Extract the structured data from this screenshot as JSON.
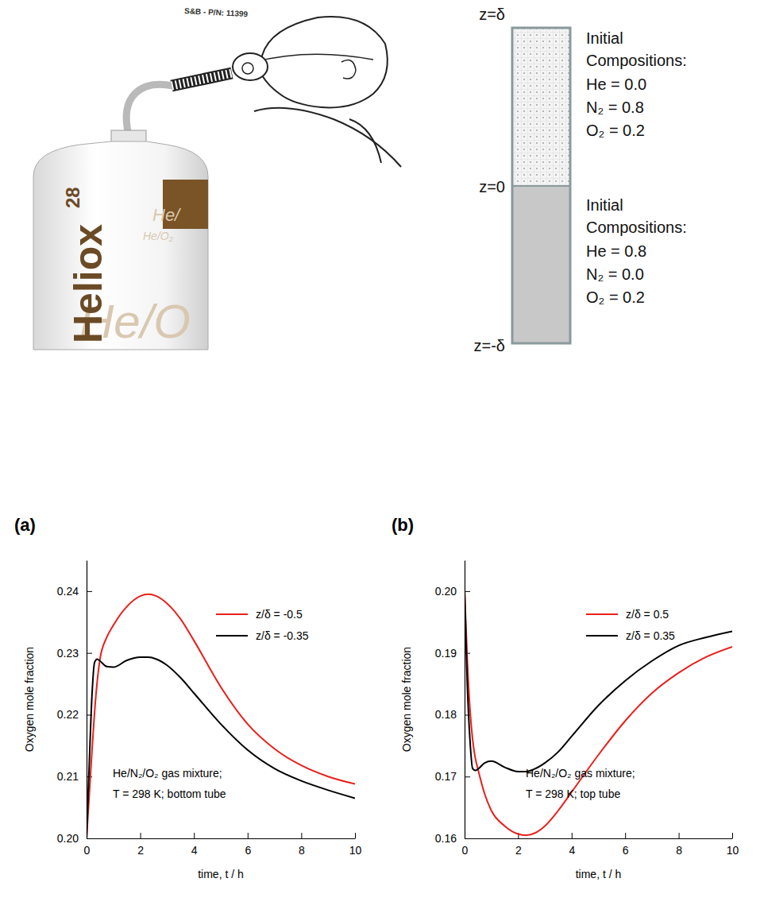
{
  "illustration": {
    "label": "S&B - P/N: 11399",
    "brand": "Heliox",
    "brand_number": "28",
    "faint_texts": [
      "He/",
      "He/O₂",
      "He/O"
    ]
  },
  "diagram": {
    "z_labels": [
      "z=δ",
      "z=0",
      "z=-δ"
    ],
    "regions": [
      {
        "heading": "Initial Compositions:",
        "lines": [
          "He = 0.0",
          "N₂ = 0.8",
          "O₂ = 0.2"
        ]
      },
      {
        "heading": "Initial Compositions:",
        "lines": [
          "He = 0.8",
          "N₂ = 0.0",
          "O₂ = 0.2"
        ]
      }
    ]
  },
  "chart_data": [
    {
      "type": "line",
      "panel": "(a)",
      "x_label": "time, t / h",
      "y_label": "Oxygen mole fraction",
      "x": [
        0,
        0.1,
        0.2,
        0.3,
        0.4,
        0.5,
        0.75,
        1,
        1.5,
        2,
        2.3,
        2.6,
        3,
        3.5,
        4,
        5,
        6,
        7,
        8,
        9,
        10
      ],
      "xlim": [
        0,
        10
      ],
      "xticks": [
        0,
        2,
        4,
        6,
        8,
        10
      ],
      "ylim": [
        0.2,
        0.245
      ],
      "yticks": [
        {
          "value": 0.2,
          "label": "0.20"
        },
        0.21,
        0.22,
        0.23,
        0.24
      ],
      "legend": "top-right",
      "annotations": [
        "He/N₂/O₂ gas mixture;",
        "T = 298 K; bottom tube"
      ],
      "series": [
        {
          "name": "z/δ = -0.5",
          "color": "#e8201c",
          "values": [
            0.2,
            0.207,
            0.214,
            0.2205,
            0.2255,
            0.229,
            0.2325,
            0.2345,
            0.2375,
            0.2392,
            0.2395,
            0.2392,
            0.238,
            0.2355,
            0.232,
            0.2245,
            0.2185,
            0.2145,
            0.2118,
            0.21,
            0.2088
          ]
        },
        {
          "name": "z/δ = -0.35",
          "color": "#000000",
          "values": [
            0.2,
            0.212,
            0.223,
            0.2285,
            0.229,
            0.2287,
            0.2278,
            0.2277,
            0.2288,
            0.2293,
            0.2293,
            0.229,
            0.228,
            0.226,
            0.2235,
            0.2185,
            0.2143,
            0.2113,
            0.2093,
            0.2078,
            0.2065
          ]
        }
      ]
    },
    {
      "type": "line",
      "panel": "(b)",
      "x_label": "time, t / h",
      "y_label": "Oxygen mole fraction",
      "x": [
        0,
        0.1,
        0.2,
        0.3,
        0.4,
        0.5,
        0.75,
        1,
        1.5,
        2,
        2.3,
        2.6,
        3,
        3.5,
        4,
        5,
        6,
        7,
        8,
        9,
        10
      ],
      "xlim": [
        0,
        10
      ],
      "xticks": [
        0,
        2,
        4,
        6,
        8,
        10
      ],
      "ylim": [
        0.16,
        0.205
      ],
      "yticks": [
        0.16,
        0.17,
        0.18,
        0.19,
        {
          "value": 0.2,
          "label": "0.20"
        }
      ],
      "legend": "top-right",
      "annotations": [
        "He/N₂/O₂ gas mixture;",
        "T = 298 K; top tube"
      ],
      "series": [
        {
          "name": "z/δ = 0.5",
          "color": "#e8201c",
          "values": [
            0.2,
            0.189,
            0.181,
            0.176,
            0.173,
            0.1712,
            0.1672,
            0.1645,
            0.162,
            0.1607,
            0.1605,
            0.1608,
            0.162,
            0.1645,
            0.1675,
            0.1735,
            0.179,
            0.1835,
            0.1868,
            0.1893,
            0.191
          ]
        },
        {
          "name": "z/δ = 0.35",
          "color": "#000000",
          "values": [
            0.2,
            0.185,
            0.176,
            0.1713,
            0.171,
            0.1712,
            0.1722,
            0.1725,
            0.1715,
            0.1708,
            0.1708,
            0.1712,
            0.1722,
            0.174,
            0.1765,
            0.1815,
            0.1855,
            0.1887,
            0.1912,
            0.1925,
            0.1935
          ]
        }
      ]
    }
  ]
}
